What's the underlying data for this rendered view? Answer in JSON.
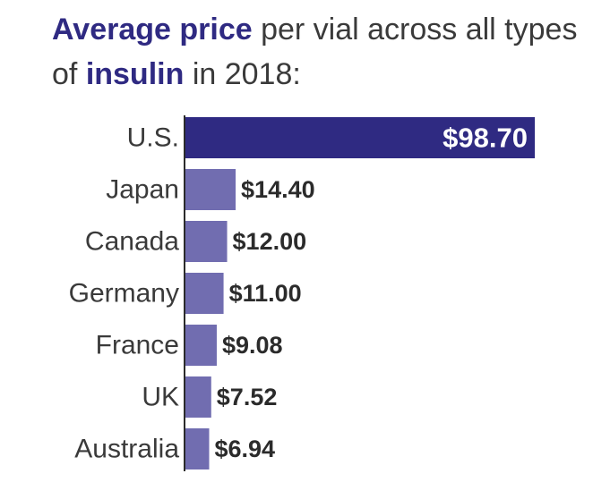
{
  "title": {
    "part1_highlight": "Average price",
    "part2": " per vial across all types of ",
    "part3_highlight": "insulin",
    "part4": " in 2018:"
  },
  "colors": {
    "highlight_bar": "#2f2a82",
    "other_bars": "#716db0",
    "title_accent": "#2f2a82",
    "text": "#3a3a3a",
    "value_text": "#2b2b2b",
    "axis": "#2b2b2b"
  },
  "chart_data": {
    "type": "bar",
    "orientation": "horizontal",
    "title": "Average price per vial across all types of insulin in 2018:",
    "categories": [
      "U.S.",
      "Japan",
      "Canada",
      "Germany",
      "France",
      "UK",
      "Australia"
    ],
    "values": [
      98.7,
      14.4,
      12.0,
      11.0,
      9.08,
      7.52,
      6.94
    ],
    "value_labels": [
      "$98.70",
      "$14.40",
      "$12.00",
      "$11.00",
      "$9.08",
      "$7.52",
      "$6.94"
    ],
    "xlim": [
      0,
      98.7
    ],
    "grid": false,
    "legend": "none"
  }
}
